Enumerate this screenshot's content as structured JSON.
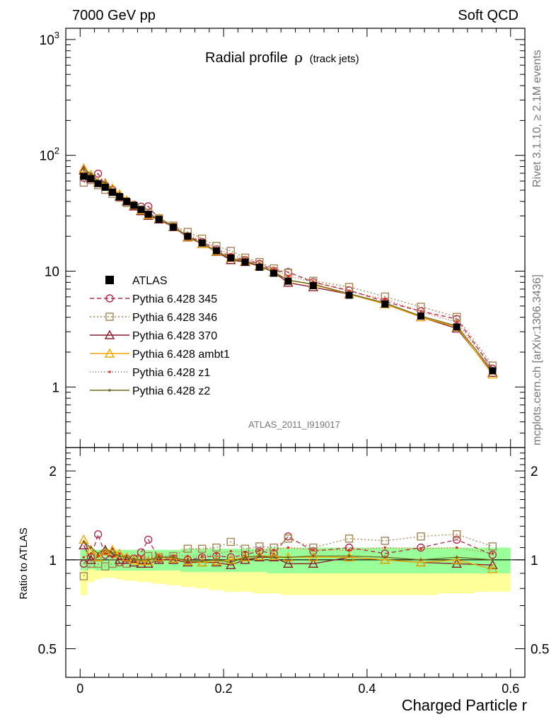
{
  "header": {
    "left": "7000 GeV pp",
    "right": "Soft QCD"
  },
  "side_labels": {
    "rivet": "Rivet 3.1.10, ≥ 2.1M events",
    "mcplots": "mcplots.cern.ch [arXiv:1306.3436]"
  },
  "analysis_id": "ATLAS_2011_I919017",
  "chart_data": {
    "type": "line",
    "title": "Radial profile ρ (track jets)",
    "title_main": "Radial profile",
    "title_rho": "ρ",
    "title_sub": "(track jets)",
    "xlabel": "Charged Particle r",
    "ylabel_ratio": "Ratio to ATLAS",
    "xlim": [
      -0.02,
      0.62
    ],
    "ylim_main": [
      0.3,
      1250
    ],
    "ylim_ratio": [
      0.4,
      2.4
    ],
    "log_y": true,
    "x_ticks": [
      {
        "v": 0,
        "label": "0"
      },
      {
        "v": 0.2,
        "label": "0.2"
      },
      {
        "v": 0.4,
        "label": "0.4"
      },
      {
        "v": 0.6,
        "label": "0.6"
      }
    ],
    "y_ticks_main": [
      {
        "v": 1,
        "label": "1"
      },
      {
        "v": 10,
        "label": "10"
      },
      {
        "v": 100,
        "label": "10^2"
      },
      {
        "v": 1000,
        "label": "10^3"
      }
    ],
    "y_ticks_ratio": [
      {
        "v": 0.5,
        "label": "0.5"
      },
      {
        "v": 1,
        "label": "1"
      },
      {
        "v": 2,
        "label": "2"
      }
    ],
    "x": [
      0.005,
      0.015,
      0.025,
      0.035,
      0.045,
      0.055,
      0.065,
      0.075,
      0.085,
      0.095,
      0.11,
      0.13,
      0.15,
      0.17,
      0.19,
      0.21,
      0.23,
      0.25,
      0.27,
      0.29,
      0.325,
      0.375,
      0.425,
      0.475,
      0.525,
      0.575
    ],
    "x_edges": [
      0.0,
      0.01,
      0.02,
      0.03,
      0.04,
      0.05,
      0.06,
      0.07,
      0.08,
      0.09,
      0.1,
      0.12,
      0.14,
      0.16,
      0.18,
      0.2,
      0.22,
      0.24,
      0.26,
      0.28,
      0.3,
      0.35,
      0.4,
      0.45,
      0.5,
      0.55,
      0.6
    ],
    "atlas": [
      66,
      63,
      57,
      53,
      48,
      44,
      40,
      37,
      34,
      31,
      28,
      24,
      20,
      17.5,
      15,
      13,
      12,
      10.8,
      9.6,
      8.2,
      7.5,
      6.2,
      5.2,
      4.1,
      3.3,
      1.38
    ],
    "band_green": [
      0.08,
      0.07,
      0.08,
      0.08,
      0.08,
      0.08,
      0.08,
      0.08,
      0.08,
      0.08,
      0.08,
      0.08,
      0.09,
      0.09,
      0.09,
      0.09,
      0.09,
      0.09,
      0.1,
      0.1,
      0.1,
      0.1,
      0.1,
      0.1,
      0.1,
      0.1
    ],
    "band_yellow_up": [
      0.08,
      0.08,
      0.08,
      0.08,
      0.08,
      0.08,
      0.08,
      0.08,
      0.08,
      0.08,
      0.08,
      0.08,
      0.08,
      0.08,
      0.08,
      0.08,
      0.08,
      0.08,
      0.09,
      0.09,
      0.09,
      0.09,
      0.09,
      0.09,
      0.09,
      0.09
    ],
    "band_yellow_down": [
      0.24,
      0.16,
      0.14,
      0.13,
      0.13,
      0.14,
      0.15,
      0.15,
      0.16,
      0.16,
      0.17,
      0.18,
      0.19,
      0.2,
      0.21,
      0.22,
      0.22,
      0.23,
      0.23,
      0.24,
      0.24,
      0.24,
      0.24,
      0.24,
      0.23,
      0.22
    ],
    "series": [
      {
        "name": "ATLAS",
        "color": "#000000",
        "marker": "filled-square",
        "dash": "none"
      },
      {
        "name": "Pythia 6.428 345",
        "color": "#b2294b",
        "marker": "open-circle",
        "dash": "6,4",
        "ratio": [
          0.97,
          1.02,
          1.22,
          1.04,
          1.05,
          0.98,
          1.01,
          1.01,
          1.06,
          1.17,
          1.01,
          1.01,
          1.0,
          1.02,
          1.03,
          1.02,
          1.04,
          1.07,
          1.05,
          1.2,
          1.07,
          1.1,
          1.05,
          1.1,
          1.17,
          1.04
        ]
      },
      {
        "name": "Pythia 6.428 346",
        "color": "#a58552",
        "marker": "open-square",
        "dash": "2,3",
        "ratio": [
          0.88,
          0.97,
          0.97,
          0.95,
          0.97,
          0.98,
          0.97,
          0.98,
          1.0,
          1.03,
          1.02,
          1.03,
          1.09,
          1.09,
          1.1,
          1.15,
          1.09,
          1.11,
          1.1,
          1.18,
          1.1,
          1.18,
          1.16,
          1.2,
          1.22,
          1.11
        ]
      },
      {
        "name": "Pythia 6.428 370",
        "color": "#8b1a2a",
        "marker": "open-triangle",
        "dash": "none",
        "ratio": [
          1.12,
          1.0,
          1.02,
          1.08,
          1.06,
          1.0,
          1.0,
          0.98,
          0.97,
          0.97,
          1.0,
          1.0,
          0.98,
          0.98,
          0.98,
          0.96,
          1.0,
          1.02,
          1.02,
          0.97,
          0.97,
          1.02,
          1.0,
          0.98,
          0.97,
          0.96
        ]
      },
      {
        "name": "Pythia 6.428 ambt1",
        "color": "#f0a500",
        "marker": "open-triangle",
        "dash": "none",
        "ratio": [
          1.17,
          1.08,
          1.02,
          1.07,
          1.08,
          1.05,
          1.02,
          1.0,
          0.99,
          0.99,
          1.02,
          1.01,
          0.99,
          0.98,
          0.99,
          1.0,
          1.02,
          1.03,
          1.03,
          1.02,
          1.02,
          1.02,
          1.0,
          0.98,
          1.0,
          0.93
        ]
      },
      {
        "name": "Pythia 6.428 z1",
        "color": "#e0301e",
        "marker": "dot",
        "dash": "1,3",
        "ratio": [
          1.02,
          1.05,
          1.03,
          1.05,
          1.02,
          1.05,
          1.02,
          1.0,
          1.02,
          1.0,
          1.03,
          1.03,
          1.03,
          1.03,
          1.05,
          1.07,
          1.06,
          1.08,
          1.08,
          1.1,
          1.08,
          1.08,
          1.1,
          1.09,
          1.1,
          1.05
        ]
      },
      {
        "name": "Pythia 6.428 z2",
        "color": "#6b6b1f",
        "marker": "dot",
        "dash": "none",
        "ratio": [
          1.15,
          1.1,
          1.05,
          1.1,
          1.05,
          1.03,
          1.02,
          1.0,
          1.0,
          1.0,
          1.02,
          1.02,
          0.99,
          0.99,
          1.0,
          0.98,
          1.02,
          1.03,
          1.02,
          1.02,
          1.03,
          1.03,
          1.02,
          1.0,
          1.02,
          1.0
        ]
      }
    ]
  }
}
